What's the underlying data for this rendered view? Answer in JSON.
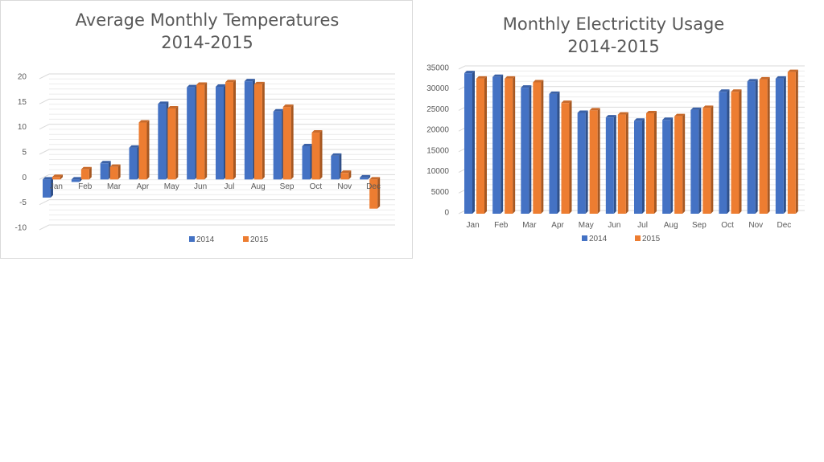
{
  "chart_data": [
    {
      "type": "bar",
      "title": "Average Monthly Temperatures",
      "subtitle": "2014-2015",
      "xlabel": "",
      "ylabel": "",
      "ylim": [
        -10,
        20
      ],
      "yticks": [
        20,
        15,
        10,
        5,
        0,
        -5,
        -10
      ],
      "ytick_labels": [
        "20",
        "15",
        "10",
        "5",
        "0",
        "-5",
        "-10"
      ],
      "categories": [
        "Jan",
        "Feb",
        "Mar",
        "Apr",
        "May",
        "Jun",
        "Jul",
        "Aug",
        "Sep",
        "Oct",
        "Nov",
        "Dec"
      ],
      "category_labels": [
        "Jan",
        "Feb",
        "Mar",
        "Apr",
        "May",
        "Jun",
        "Jul",
        "Aug",
        "Sep",
        "Oct",
        "Nov",
        "Dec"
      ],
      "series": [
        {
          "name": "2014",
          "color": "#4472c4",
          "values": [
            -3.6,
            -0.5,
            3.2,
            6.3,
            15.0,
            18.3,
            18.4,
            19.5,
            13.5,
            6.6,
            4.7,
            0.4
          ]
        },
        {
          "name": "2015",
          "color": "#ed7d31",
          "values": [
            0.5,
            2.0,
            2.5,
            11.3,
            14.1,
            18.8,
            19.3,
            18.9,
            14.4,
            9.3,
            1.3,
            -5.8
          ]
        }
      ],
      "legend_position": "bottom",
      "grid": true
    },
    {
      "type": "bar",
      "title": "Monthly Electrictity Usage",
      "subtitle": "2014-2015",
      "xlabel": "",
      "ylabel": "",
      "ylim": [
        0,
        35000
      ],
      "yticks": [
        35000,
        30000,
        25000,
        20000,
        15000,
        10000,
        5000,
        0
      ],
      "ytick_labels": [
        "35000",
        "30000",
        "25000",
        "20000",
        "15000",
        "10000",
        "5000",
        "0"
      ],
      "categories": [
        "Jan",
        "Feb",
        "Mar",
        "Apr",
        "May",
        "Jun",
        "Jul",
        "Aug",
        "Sep",
        "Oct",
        "Nov",
        "Dec"
      ],
      "category_labels": [
        "Jan",
        "Feb",
        "Mar",
        "Apr",
        "May",
        "Jun",
        "Jul",
        "Aug",
        "Sep",
        "Oct",
        "Nov",
        "Dec"
      ],
      "series": [
        {
          "name": "2014",
          "color": "#4472c4",
          "values": [
            34000,
            33100,
            30500,
            29000,
            24400,
            23300,
            22500,
            22700,
            25100,
            29500,
            32000,
            32700
          ]
        },
        {
          "name": "2015",
          "color": "#ed7d31",
          "values": [
            32700,
            32700,
            31800,
            26800,
            25000,
            24000,
            24300,
            23600,
            25600,
            29500,
            32500,
            34300
          ]
        }
      ],
      "legend_position": "bottom",
      "grid": true
    }
  ]
}
